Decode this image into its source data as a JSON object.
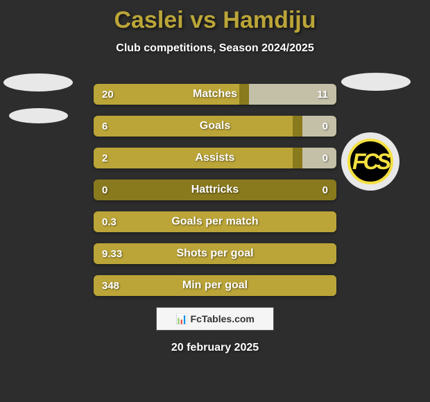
{
  "background_color": "#2d2d2d",
  "title": {
    "text_p1": "Caslei",
    "text_vs": "vs",
    "text_p2": "Hamdiju",
    "color": "#bba538",
    "fontsize": 34
  },
  "subtitle": {
    "text": "Club competitions, Season 2024/2025",
    "color": "#ffffff",
    "fontsize": 16
  },
  "right_badge": {
    "outer_color": "#e8e8e8",
    "inner_border": "#f5e040",
    "inner_bg": "#000000",
    "text": "FCS",
    "text_color": "#f5e040",
    "fontsize": 32
  },
  "bars": {
    "bar_bg": "#8a7a1e",
    "left_fill": "#bba538",
    "right_fill": "#c4c0a8",
    "text_color": "#ffffff",
    "label_fontsize": 16,
    "value_fontsize": 15,
    "rows": [
      {
        "label": "Matches",
        "left_val": "20",
        "right_val": "11",
        "left_pct": 60,
        "right_pct": 36
      },
      {
        "label": "Goals",
        "left_val": "6",
        "right_val": "0",
        "left_pct": 82,
        "right_pct": 14
      },
      {
        "label": "Assists",
        "left_val": "2",
        "right_val": "0",
        "left_pct": 82,
        "right_pct": 14
      },
      {
        "label": "Hattricks",
        "left_val": "0",
        "right_val": "0",
        "left_pct": 0,
        "right_pct": 0
      },
      {
        "label": "Goals per match",
        "left_val": "0.3",
        "right_val": "",
        "left_pct": 100,
        "right_pct": 0
      },
      {
        "label": "Shots per goal",
        "left_val": "9.33",
        "right_val": "",
        "left_pct": 100,
        "right_pct": 0
      },
      {
        "label": "Min per goal",
        "left_val": "348",
        "right_val": "",
        "left_pct": 100,
        "right_pct": 0
      }
    ]
  },
  "fctables_label": "FcTables.com",
  "date": {
    "text": "20 february 2025",
    "color": "#ffffff",
    "fontsize": 16
  }
}
